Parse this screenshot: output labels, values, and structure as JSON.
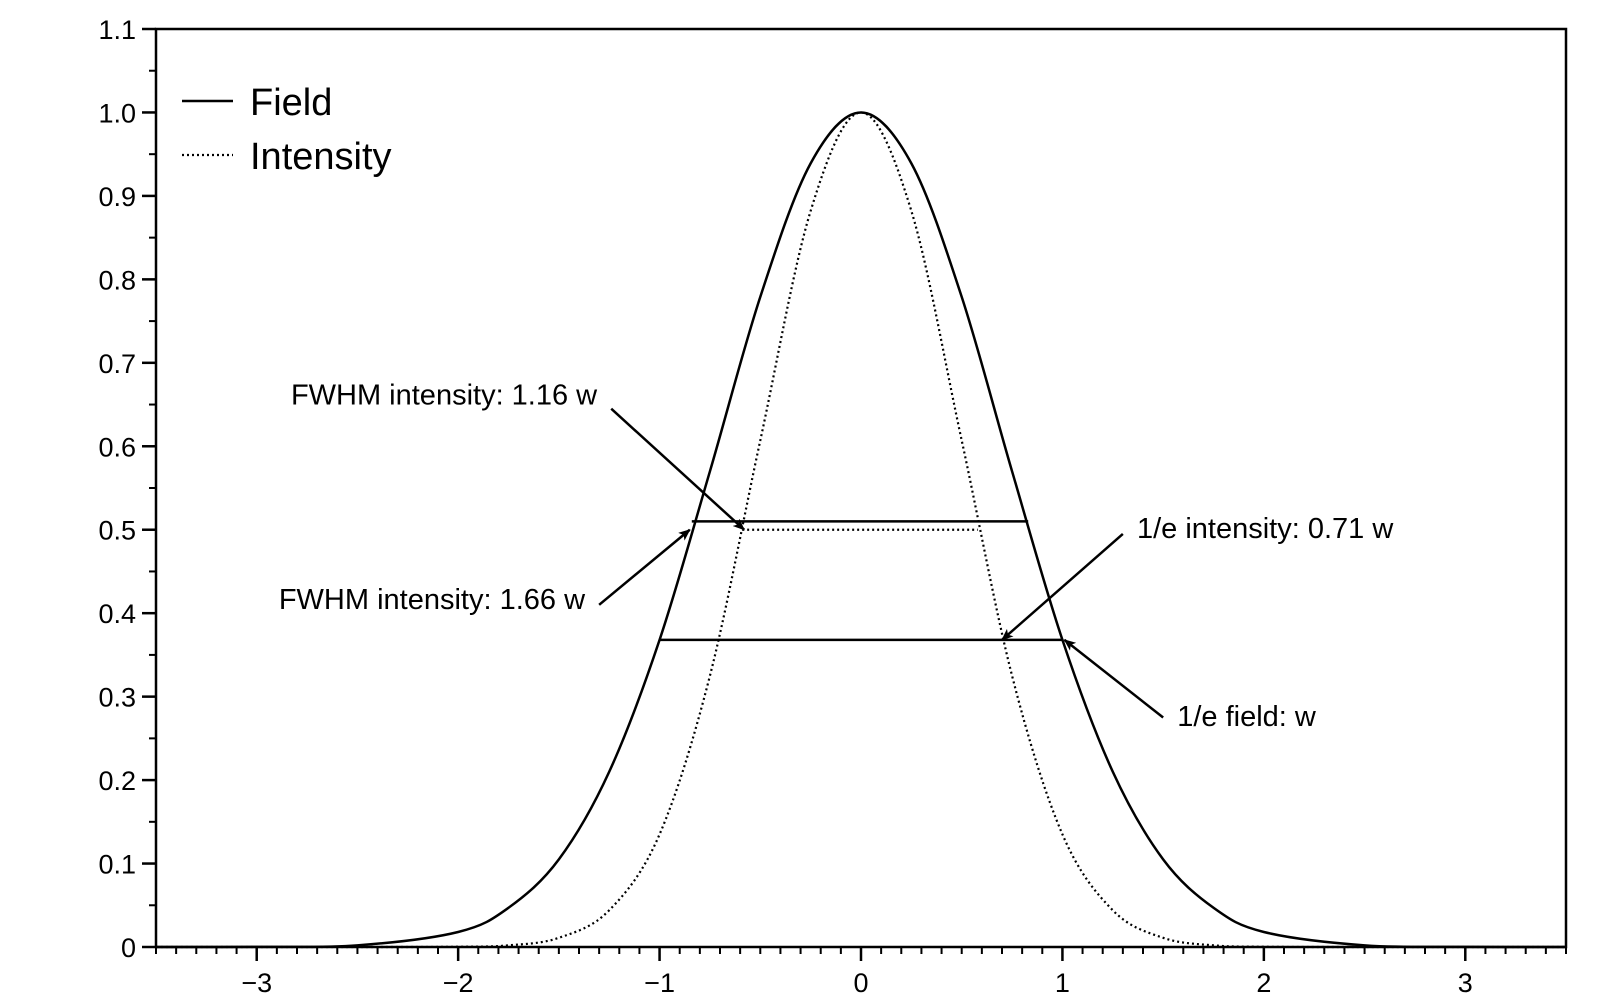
{
  "chart_data": {
    "type": "line",
    "title": "",
    "xlabel": "",
    "ylabel": "",
    "xlim": [
      -3.5,
      3.5
    ],
    "ylim": [
      0,
      1.1
    ],
    "x_ticks": [
      -3,
      -2,
      -1,
      0,
      1,
      2,
      3
    ],
    "x_tick_labels": [
      "−3",
      "−2",
      "−1",
      "0",
      "1",
      "2",
      "3"
    ],
    "y_ticks": [
      0,
      0.1,
      0.2,
      0.3,
      0.4,
      0.5,
      0.6,
      0.7,
      0.8,
      0.9,
      1.0,
      1.1
    ],
    "y_tick_labels": [
      "0",
      "0.1",
      "0.2",
      "0.3",
      "0.4",
      "0.5",
      "0.6",
      "0.7",
      "0.8",
      "0.9",
      "1.0",
      "1.1"
    ],
    "x_minor_step": 0.1,
    "y_minor_step": 0.05,
    "grid": false,
    "legend_position": "top-left",
    "series": [
      {
        "name": "Field",
        "style": "solid",
        "color": "#000000",
        "x": [
          -3.5,
          -3,
          -2.5,
          -2,
          -1.75,
          -1.5,
          -1.25,
          -1,
          -0.75,
          -0.5,
          -0.25,
          0,
          0.25,
          0.5,
          0.75,
          1,
          1.25,
          1.5,
          1.75,
          2,
          2.5,
          3,
          3.5
        ],
        "y": [
          0.0,
          0.0001,
          0.002,
          0.018,
          0.047,
          0.105,
          0.21,
          0.368,
          0.57,
          0.779,
          0.939,
          1.0,
          0.939,
          0.779,
          0.57,
          0.368,
          0.21,
          0.105,
          0.047,
          0.018,
          0.002,
          0.0001,
          0.0
        ]
      },
      {
        "name": "Intensity",
        "style": "dotted",
        "color": "#000000",
        "x": [
          -3.5,
          -2.5,
          -2,
          -1.75,
          -1.5,
          -1.25,
          -1,
          -0.75,
          -0.5,
          -0.25,
          0,
          0.25,
          0.5,
          0.75,
          1,
          1.25,
          1.5,
          1.75,
          2,
          2.5,
          3.5
        ],
        "y": [
          0.0,
          0.0,
          0.0003,
          0.002,
          0.011,
          0.044,
          0.135,
          0.325,
          0.607,
          0.882,
          1.0,
          0.882,
          0.607,
          0.325,
          0.135,
          0.044,
          0.011,
          0.002,
          0.0003,
          0.0,
          0.0
        ]
      }
    ],
    "reference_lines": [
      {
        "x1": -0.84,
        "x2": 0.83,
        "y": 0.51,
        "style": "solid"
      },
      {
        "x1": -0.59,
        "x2": 0.58,
        "y": 0.5,
        "style": "dotted"
      },
      {
        "x1": -1.0,
        "x2": 1.0,
        "y": 0.368,
        "style": "solid"
      }
    ],
    "annotations": [
      {
        "text": "FWHM intensity: 1.16 w",
        "anchor": "end",
        "text_x": -1.31,
        "text_y": 0.65,
        "tail_x": -1.24,
        "tail_y": 0.645,
        "head_x": -0.58,
        "head_y": 0.5
      },
      {
        "text": "FWHM intensity: 1.66 w",
        "anchor": "end",
        "text_x": -1.37,
        "text_y": 0.405,
        "tail_x": -1.3,
        "tail_y": 0.41,
        "head_x": -0.85,
        "head_y": 0.5
      },
      {
        "text": "1/e intensity: 0.71 w",
        "anchor": "start",
        "text_x": 1.37,
        "text_y": 0.49,
        "tail_x": 1.3,
        "tail_y": 0.495,
        "head_x": 0.7,
        "head_y": 0.368
      },
      {
        "text": "1/e field: w",
        "anchor": "start",
        "text_x": 1.57,
        "text_y": 0.265,
        "tail_x": 1.5,
        "tail_y": 0.275,
        "head_x": 1.01,
        "head_y": 0.368
      }
    ]
  }
}
